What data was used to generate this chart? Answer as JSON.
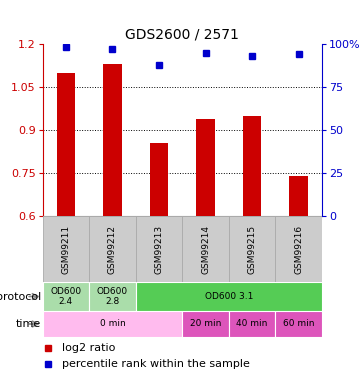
{
  "title": "GDS2600 / 2571",
  "samples": [
    "GSM99211",
    "GSM99212",
    "GSM99213",
    "GSM99214",
    "GSM99215",
    "GSM99216"
  ],
  "log2_ratio": [
    1.1,
    1.13,
    0.855,
    0.94,
    0.95,
    0.74
  ],
  "percentile_rank": [
    98,
    97,
    88,
    95,
    93,
    94
  ],
  "ylim_left": [
    0.6,
    1.2
  ],
  "yticks_left": [
    0.6,
    0.75,
    0.9,
    1.05,
    1.2
  ],
  "ylim_right": [
    0,
    100
  ],
  "yticks_right": [
    0,
    25,
    50,
    75,
    100
  ],
  "bar_color": "#cc0000",
  "dot_color": "#0000cc",
  "bar_width": 0.4,
  "protocol_row": [
    {
      "label": "OD600\n2.4",
      "start": 0,
      "end": 1,
      "color": "#aaddaa"
    },
    {
      "label": "OD600\n2.8",
      "start": 1,
      "end": 2,
      "color": "#aaddaa"
    },
    {
      "label": "OD600 3.1",
      "start": 2,
      "end": 6,
      "color": "#55cc55"
    }
  ],
  "time_row": [
    {
      "label": "0 min",
      "start": 0,
      "end": 3,
      "color": "#ffbbee"
    },
    {
      "label": "20 min",
      "start": 3,
      "end": 4,
      "color": "#dd55bb"
    },
    {
      "label": "40 min",
      "start": 4,
      "end": 5,
      "color": "#dd55bb"
    },
    {
      "label": "60 min",
      "start": 5,
      "end": 6,
      "color": "#dd55bb"
    }
  ],
  "left_label_color": "#cc0000",
  "right_label_color": "#0000cc",
  "sample_bg_color": "#cccccc",
  "sample_border_color": "#aaaaaa",
  "protocol_label": "protocol",
  "time_label": "time",
  "legend_log2": "log2 ratio",
  "legend_pct": "percentile rank within the sample"
}
